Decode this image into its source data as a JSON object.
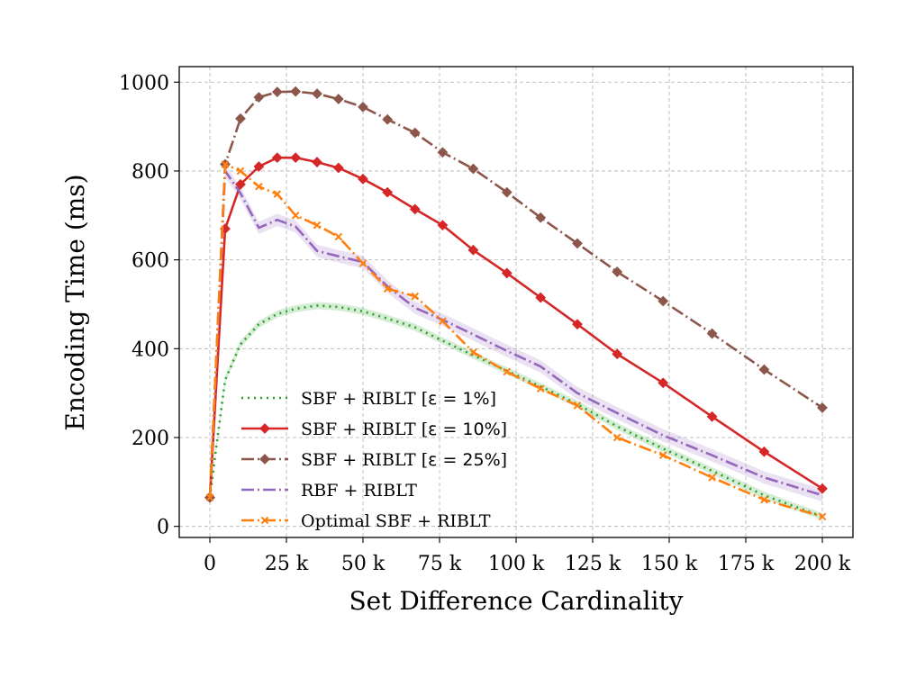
{
  "chart_data": {
    "type": "line",
    "title": "",
    "xlabel": "Set Difference Cardinality",
    "ylabel": "Encoding Time (ms)",
    "xlim": [
      -10000,
      210000
    ],
    "ylim": [
      -25,
      1035
    ],
    "grid": true,
    "legend_position": "lower-left",
    "x_ticks": [
      {
        "value": 0,
        "label": "0"
      },
      {
        "value": 25000,
        "label": "25 k"
      },
      {
        "value": 50000,
        "label": "50 k"
      },
      {
        "value": 75000,
        "label": "75 k"
      },
      {
        "value": 100000,
        "label": "100 k"
      },
      {
        "value": 125000,
        "label": "125 k"
      },
      {
        "value": 150000,
        "label": "150 k"
      },
      {
        "value": 175000,
        "label": "175 k"
      },
      {
        "value": 200000,
        "label": "200 k"
      }
    ],
    "y_ticks": [
      {
        "value": 0,
        "label": "0"
      },
      {
        "value": 200,
        "label": "200"
      },
      {
        "value": 400,
        "label": "400"
      },
      {
        "value": 600,
        "label": "600"
      },
      {
        "value": 800,
        "label": "800"
      },
      {
        "value": 1000,
        "label": "1000"
      }
    ],
    "series": [
      {
        "name": "SBF + RIBLT [ε = 1%]",
        "legend_prefix": "SBF + RIBLT [",
        "legend_math": "ε = 1%",
        "legend_suffix": "]",
        "color": "#2ca02c",
        "dash": "2 5",
        "marker": "none",
        "band": 8,
        "x": [
          0,
          2500,
          5000,
          10000,
          16000,
          22000,
          28000,
          35000,
          42000,
          50000,
          58000,
          67000,
          76000,
          86000,
          97000,
          108000,
          120000,
          133000,
          148000,
          164000,
          181000,
          200000
        ],
        "y": [
          65,
          200,
          330,
          410,
          455,
          478,
          490,
          497,
          494,
          484,
          468,
          448,
          418,
          385,
          350,
          315,
          275,
          225,
          175,
          125,
          70,
          22
        ]
      },
      {
        "name": "SBF + RIBLT [ε = 10%]",
        "legend_prefix": "SBF + RIBLT [",
        "legend_math": "ε = 10%",
        "legend_suffix": "]",
        "color": "#d62728",
        "dash": "",
        "marker": "diamond",
        "band": 0,
        "x": [
          0,
          5000,
          10000,
          16000,
          22000,
          28000,
          35000,
          42000,
          50000,
          58000,
          67000,
          76000,
          86000,
          97000,
          108000,
          120000,
          133000,
          148000,
          164000,
          181000,
          200000
        ],
        "y": [
          65,
          670,
          770,
          810,
          830,
          830,
          820,
          807,
          782,
          752,
          714,
          678,
          622,
          570,
          515,
          455,
          388,
          323,
          247,
          168,
          85
        ]
      },
      {
        "name": "SBF + RIBLT [ε = 25%]",
        "legend_prefix": "SBF + RIBLT [",
        "legend_math": "ε = 25%",
        "legend_suffix": "]",
        "color": "#8c564b",
        "dash": "14 4 2 4",
        "marker": "diamond",
        "band": 0,
        "x": [
          0,
          5000,
          10000,
          16000,
          22000,
          28000,
          35000,
          42000,
          50000,
          58000,
          67000,
          76000,
          86000,
          97000,
          108000,
          120000,
          133000,
          148000,
          164000,
          181000,
          200000
        ],
        "y": [
          65,
          815,
          918,
          966,
          978,
          979,
          974,
          962,
          944,
          916,
          886,
          842,
          805,
          752,
          695,
          637,
          573,
          507,
          434,
          353,
          267
        ]
      },
      {
        "name": "RBF + RIBLT",
        "legend_prefix": "RBF + RIBLT",
        "legend_math": "",
        "legend_suffix": "",
        "color": "#9467bd",
        "dash": "14 4 2 4",
        "marker": "none",
        "band": 14,
        "x": [
          0,
          5000,
          10000,
          16000,
          22000,
          28000,
          35000,
          42000,
          50000,
          58000,
          67000,
          76000,
          86000,
          97000,
          108000,
          120000,
          133000,
          148000,
          164000,
          181000,
          200000
        ],
        "y": [
          65,
          800,
          750,
          672,
          690,
          675,
          620,
          608,
          595,
          540,
          492,
          465,
          432,
          395,
          360,
          300,
          255,
          205,
          160,
          110,
          70
        ]
      },
      {
        "name": "Optimal SBF + RIBLT",
        "legend_prefix": "Optimal SBF + RIBLT",
        "legend_math": "",
        "legend_suffix": "",
        "color": "#ff7f0e",
        "dash": "14 4 2 4",
        "marker": "x",
        "band": 0,
        "x": [
          0,
          5000,
          10000,
          16000,
          22000,
          28000,
          35000,
          42000,
          50000,
          58000,
          67000,
          76000,
          86000,
          97000,
          108000,
          120000,
          133000,
          148000,
          164000,
          181000,
          200000
        ],
        "y": [
          65,
          815,
          800,
          765,
          748,
          700,
          678,
          652,
          592,
          535,
          518,
          462,
          392,
          348,
          310,
          272,
          200,
          160,
          110,
          60,
          22
        ]
      }
    ]
  }
}
